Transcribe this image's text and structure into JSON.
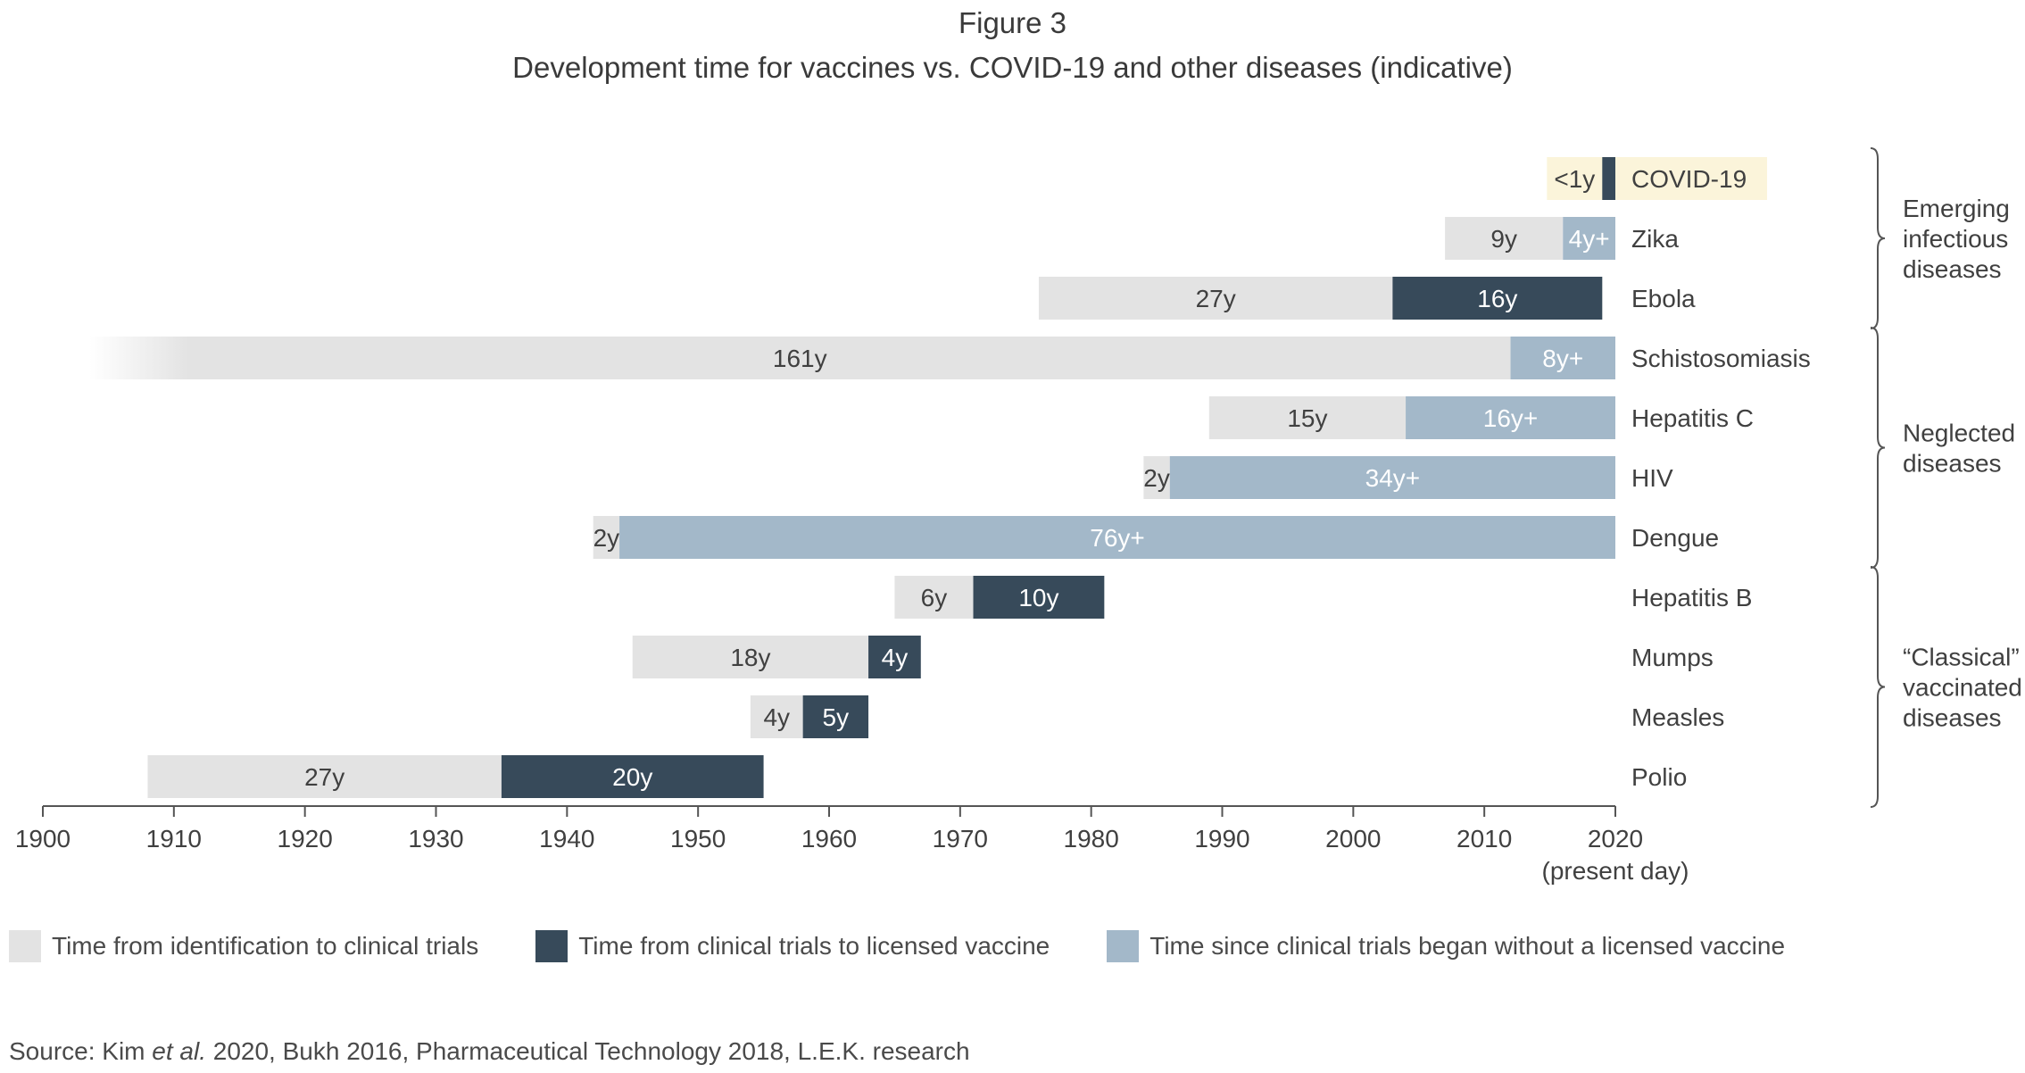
{
  "figure_label": "Figure 3",
  "colors": {
    "identification": "#e3e3e3",
    "trials_to_license": "#374a5a",
    "no_license": "#a3b8c9",
    "highlight": "#fbf4da",
    "axis": "#555555",
    "text": "#404040"
  },
  "legend": [
    {
      "key": "identification",
      "label": "Time from identification to clinical trials"
    },
    {
      "key": "trials_to_license",
      "label": "Time from clinical trials to licensed vaccine"
    },
    {
      "key": "no_license",
      "label": "Time since clinical trials began without a licensed vaccine"
    }
  ],
  "source": {
    "prefix": "Source: Kim ",
    "italic": "et al.",
    "suffix": " 2020, Bukh 2016, Pharmaceutical Technology 2018, L.E.K. research"
  },
  "chart_data": {
    "type": "bar",
    "orientation": "horizontal-stacked",
    "title": "Development time for vaccines vs. COVID-19 and other diseases (indicative)",
    "xlim": [
      1900,
      2020
    ],
    "x_ticks": [
      1900,
      1910,
      1920,
      1930,
      1940,
      1950,
      1960,
      1970,
      1980,
      1990,
      2000,
      2010,
      2020
    ],
    "x_tick_sublabel": "(present day)",
    "grid": false,
    "legend_position": "bottom",
    "groups": [
      {
        "label_lines": [
          "Emerging",
          "infectious",
          "diseases"
        ],
        "from": "COVID-19",
        "to": "Ebola"
      },
      {
        "label_lines": [
          "Neglected",
          "diseases"
        ],
        "from": "Schistosomiasis",
        "to": "Dengue"
      },
      {
        "label_lines": [
          "“Classical”",
          "vaccinated",
          "diseases"
        ],
        "from": "Hepatitis B",
        "to": "Polio"
      }
    ],
    "rows": [
      {
        "name": "COVID-19",
        "highlight": true,
        "segments": [
          {
            "series": "trials_to_license",
            "start": 2019,
            "end": 2020,
            "label": "<1y",
            "label_outside": true
          }
        ]
      },
      {
        "name": "Zika",
        "segments": [
          {
            "series": "identification",
            "start": 2007,
            "end": 2016,
            "label": "9y"
          },
          {
            "series": "no_license",
            "start": 2016,
            "end": 2020,
            "label": "4y+"
          }
        ]
      },
      {
        "name": "Ebola",
        "segments": [
          {
            "series": "identification",
            "start": 1976,
            "end": 2003,
            "label": "27y"
          },
          {
            "series": "trials_to_license",
            "start": 2003,
            "end": 2019,
            "label": "16y"
          }
        ]
      },
      {
        "name": "Schistosomiasis",
        "segments": [
          {
            "series": "identification",
            "start": 1851,
            "end": 2012,
            "label": "161y",
            "faded_start": true
          },
          {
            "series": "no_license",
            "start": 2012,
            "end": 2020,
            "label": "8y+"
          }
        ]
      },
      {
        "name": "Hepatitis C",
        "segments": [
          {
            "series": "identification",
            "start": 1989,
            "end": 2004,
            "label": "15y"
          },
          {
            "series": "no_license",
            "start": 2004,
            "end": 2020,
            "label": "16y+"
          }
        ]
      },
      {
        "name": "HIV",
        "segments": [
          {
            "series": "identification",
            "start": 1984,
            "end": 1986,
            "label": "2y"
          },
          {
            "series": "no_license",
            "start": 1986,
            "end": 2020,
            "label": "34y+"
          }
        ]
      },
      {
        "name": "Dengue",
        "segments": [
          {
            "series": "identification",
            "start": 1942,
            "end": 1944,
            "label": "2y"
          },
          {
            "series": "no_license",
            "start": 1944,
            "end": 2020,
            "label": "76y+"
          }
        ]
      },
      {
        "name": "Hepatitis B",
        "segments": [
          {
            "series": "identification",
            "start": 1965,
            "end": 1971,
            "label": "6y"
          },
          {
            "series": "trials_to_license",
            "start": 1971,
            "end": 1981,
            "label": "10y"
          }
        ]
      },
      {
        "name": "Mumps",
        "segments": [
          {
            "series": "identification",
            "start": 1945,
            "end": 1963,
            "label": "18y"
          },
          {
            "series": "trials_to_license",
            "start": 1963,
            "end": 1967,
            "label": "4y"
          }
        ]
      },
      {
        "name": "Measles",
        "segments": [
          {
            "series": "identification",
            "start": 1954,
            "end": 1958,
            "label": "4y"
          },
          {
            "series": "trials_to_license",
            "start": 1958,
            "end": 1963,
            "label": "5y"
          }
        ]
      },
      {
        "name": "Polio",
        "segments": [
          {
            "series": "identification",
            "start": 1908,
            "end": 1935,
            "label": "27y"
          },
          {
            "series": "trials_to_license",
            "start": 1935,
            "end": 1955,
            "label": "20y"
          }
        ]
      }
    ]
  }
}
